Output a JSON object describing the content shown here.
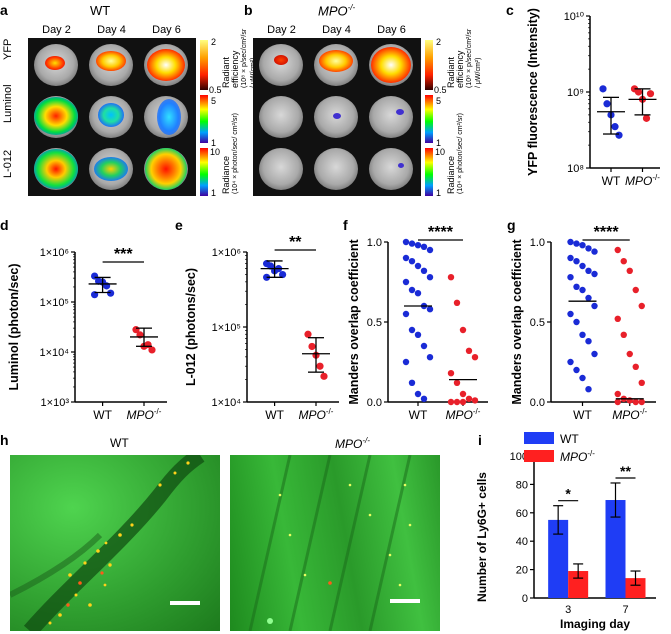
{
  "panels": {
    "a": {
      "letter": "a",
      "title": "WT",
      "days": [
        "Day 2",
        "Day 4",
        "Day 6"
      ],
      "rows": [
        "YFP",
        "Luminol",
        "L-012"
      ]
    },
    "b": {
      "letter": "b",
      "title": "MPO",
      "title_sup": "-/-",
      "days": [
        "Day 2",
        "Day 4",
        "Day 6"
      ]
    },
    "scales": {
      "yfp": {
        "max": "2",
        "min": "0.5",
        "label": "Radiant efficiency",
        "unit": "(10⁸ × p/sec/cm²/sr / μW/cm²)"
      },
      "lum": {
        "max": "5",
        "min": "1",
        "label": "Radiance",
        "unit": "(10⁴ × photon/sec/ cm²/sr)"
      },
      "l012": {
        "max": "10",
        "min": "1",
        "label": "Radiance",
        "unit": "(10⁴ × photon/sec/ cm²/sr)"
      }
    },
    "h": {
      "letter": "h",
      "left_title": "WT",
      "right_title": "MPO",
      "right_sup": "-/-"
    }
  },
  "colors": {
    "wt": "#1a2bd6",
    "mpo": "#e8202a",
    "blue_bar": "#1f3df5",
    "red_bar": "#ff2020"
  },
  "chart_data": [
    {
      "id": "c",
      "type": "scatter",
      "ylabel": "YFP fluorescence (Intensity)",
      "scale": "log",
      "ylim": [
        100000000,
        10000000000
      ],
      "yticks": [
        "10⁸",
        "10⁹",
        "10¹⁰"
      ],
      "categories": [
        "WT",
        "MPO-/-"
      ],
      "series": [
        {
          "name": "WT",
          "values": [
            1100000000,
            700000000,
            500000000,
            350000000,
            270000000
          ],
          "mean": 550000000,
          "sd_low": 280000000,
          "sd_high": 850000000
        },
        {
          "name": "MPO-/-",
          "values": [
            1100000000,
            1000000000,
            800000000,
            450000000,
            950000000
          ],
          "mean": 800000000,
          "sd_low": 500000000,
          "sd_high": 1100000000
        }
      ]
    },
    {
      "id": "d",
      "type": "scatter",
      "ylabel": "Luminol (photon/sec)",
      "scale": "log",
      "ylim": [
        1000,
        1000000
      ],
      "yticks": [
        "1×10³",
        "1×10⁴",
        "1×10⁵",
        "1×10⁶"
      ],
      "categories": [
        "WT",
        "MPO-/-"
      ],
      "significance": "***",
      "series": [
        {
          "name": "WT",
          "values": [
            330000,
            260000,
            250000,
            210000,
            150000,
            140000
          ],
          "mean": 230000,
          "sd_low": 155000,
          "sd_high": 310000
        },
        {
          "name": "MPO-/-",
          "values": [
            28000,
            22000,
            13000,
            14000,
            11000
          ],
          "mean": 20000,
          "sd_low": 13000,
          "sd_high": 30000
        }
      ]
    },
    {
      "id": "e",
      "type": "scatter",
      "ylabel": "L-012 (photons/sec)",
      "scale": "log",
      "ylim": [
        10000,
        1000000
      ],
      "yticks": [
        "1×10⁴",
        "1×10⁵",
        "1×10⁶"
      ],
      "categories": [
        "WT",
        "MPO-/-"
      ],
      "significance": "**",
      "series": [
        {
          "name": "WT",
          "values": [
            700000,
            650000,
            560000,
            600000,
            500000,
            460000
          ],
          "mean": 600000,
          "sd_low": 460000,
          "sd_high": 760000
        },
        {
          "name": "MPO-/-",
          "values": [
            80000,
            55000,
            42000,
            30000,
            22000
          ],
          "mean": 44000,
          "sd_low": 25000,
          "sd_high": 72000
        }
      ]
    },
    {
      "id": "f",
      "type": "scatter",
      "ylabel": "Manders overlap coefficient",
      "ylim": [
        0,
        1
      ],
      "yticks": [
        "0.0",
        "0.5",
        "1.0"
      ],
      "categories": [
        "WT",
        "MPO-/-"
      ],
      "significance": "****",
      "series": [
        {
          "name": "WT",
          "values": [
            1.0,
            0.99,
            0.98,
            0.97,
            0.95,
            0.9,
            0.88,
            0.85,
            0.82,
            0.78,
            0.75,
            0.7,
            0.68,
            0.6,
            0.58,
            0.55,
            0.45,
            0.42,
            0.35,
            0.28,
            0.25,
            0.12,
            0.05,
            0.02
          ],
          "mean": 0.6
        },
        {
          "name": "MPO-/-",
          "values": [
            0.78,
            0.62,
            0.45,
            0.32,
            0.28,
            0.18,
            0.12,
            0.05,
            0.02,
            0.01,
            0.0,
            0.0,
            0.0
          ],
          "mean": 0.14
        }
      ]
    },
    {
      "id": "g",
      "type": "scatter",
      "ylabel": "Manders overlap coefficient",
      "ylim": [
        0,
        1
      ],
      "yticks": [
        "0.0",
        "0.5",
        "1.0"
      ],
      "categories": [
        "WT",
        "MPO-/-"
      ],
      "significance": "****",
      "series": [
        {
          "name": "WT",
          "values": [
            1.0,
            0.99,
            0.98,
            0.96,
            0.94,
            0.9,
            0.88,
            0.85,
            0.82,
            0.8,
            0.78,
            0.72,
            0.7,
            0.65,
            0.6,
            0.55,
            0.5,
            0.42,
            0.38,
            0.3,
            0.25,
            0.2,
            0.15,
            0.08
          ],
          "mean": 0.63
        },
        {
          "name": "MPO-/-",
          "values": [
            0.95,
            0.88,
            0.82,
            0.7,
            0.6,
            0.52,
            0.42,
            0.3,
            0.22,
            0.12,
            0.05,
            0.02,
            0.01,
            0.0,
            0.0,
            0.0
          ],
          "mean": 0.02
        }
      ]
    },
    {
      "id": "i",
      "type": "bar",
      "ylabel": "Number of Ly6G+ cells",
      "xlabel": "Imaging day",
      "ylim": [
        0,
        100
      ],
      "yticks": [
        "0",
        "20",
        "40",
        "60",
        "80",
        "100"
      ],
      "categories": [
        "3",
        "7"
      ],
      "legend": [
        "WT",
        "MPO-/-"
      ],
      "significance": [
        "*",
        "**"
      ],
      "series": [
        {
          "name": "WT",
          "values": [
            55,
            69
          ],
          "err": [
            10,
            12
          ]
        },
        {
          "name": "MPO-/-",
          "values": [
            19,
            14
          ],
          "err": [
            5,
            5
          ]
        }
      ]
    }
  ]
}
